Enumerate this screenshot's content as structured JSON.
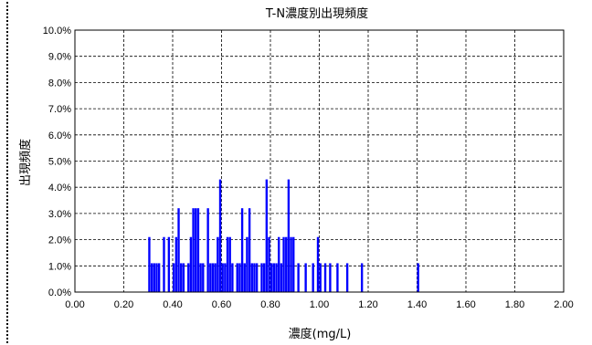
{
  "chart_data": {
    "type": "bar",
    "title": "T-N濃度別出現頻度",
    "xlabel": "濃度(mg/L)",
    "ylabel": "出現頻度",
    "xlim": [
      0,
      2.0
    ],
    "ylim": [
      0,
      0.1
    ],
    "x_ticks": [
      "0.00",
      "0.20",
      "0.40",
      "0.60",
      "0.80",
      "1.00",
      "1.20",
      "1.40",
      "1.60",
      "1.80",
      "2.00"
    ],
    "y_ticks": [
      "0.0%",
      "1.0%",
      "2.0%",
      "3.0%",
      "4.0%",
      "5.0%",
      "6.0%",
      "7.0%",
      "8.0%",
      "9.0%",
      "10.0%"
    ],
    "grid": true,
    "bin_width": 0.01,
    "color": "#0000ff",
    "x": [
      0.3,
      0.31,
      0.32,
      0.33,
      0.34,
      0.36,
      0.38,
      0.4,
      0.41,
      0.42,
      0.43,
      0.44,
      0.46,
      0.47,
      0.48,
      0.49,
      0.5,
      0.51,
      0.52,
      0.54,
      0.55,
      0.56,
      0.57,
      0.58,
      0.59,
      0.6,
      0.61,
      0.62,
      0.63,
      0.64,
      0.66,
      0.67,
      0.68,
      0.69,
      0.7,
      0.71,
      0.72,
      0.73,
      0.74,
      0.76,
      0.77,
      0.78,
      0.79,
      0.8,
      0.81,
      0.82,
      0.83,
      0.84,
      0.85,
      0.86,
      0.87,
      0.88,
      0.89,
      0.91,
      0.94,
      0.97,
      0.99,
      1.0,
      1.02,
      1.04,
      1.07,
      1.11,
      1.17,
      1.4
    ],
    "values": [
      0.021,
      0.011,
      0.011,
      0.011,
      0.011,
      0.021,
      0.021,
      0.011,
      0.021,
      0.032,
      0.011,
      0.011,
      0.011,
      0.021,
      0.032,
      0.032,
      0.032,
      0.011,
      0.011,
      0.032,
      0.011,
      0.011,
      0.011,
      0.021,
      0.043,
      0.011,
      0.011,
      0.021,
      0.021,
      0.011,
      0.011,
      0.011,
      0.032,
      0.011,
      0.021,
      0.032,
      0.011,
      0.011,
      0.011,
      0.011,
      0.011,
      0.043,
      0.021,
      0.011,
      0.011,
      0.011,
      0.021,
      0.011,
      0.021,
      0.021,
      0.043,
      0.021,
      0.021,
      0.011,
      0.011,
      0.011,
      0.021,
      0.011,
      0.011,
      0.011,
      0.011,
      0.011,
      0.011,
      0.011
    ]
  }
}
